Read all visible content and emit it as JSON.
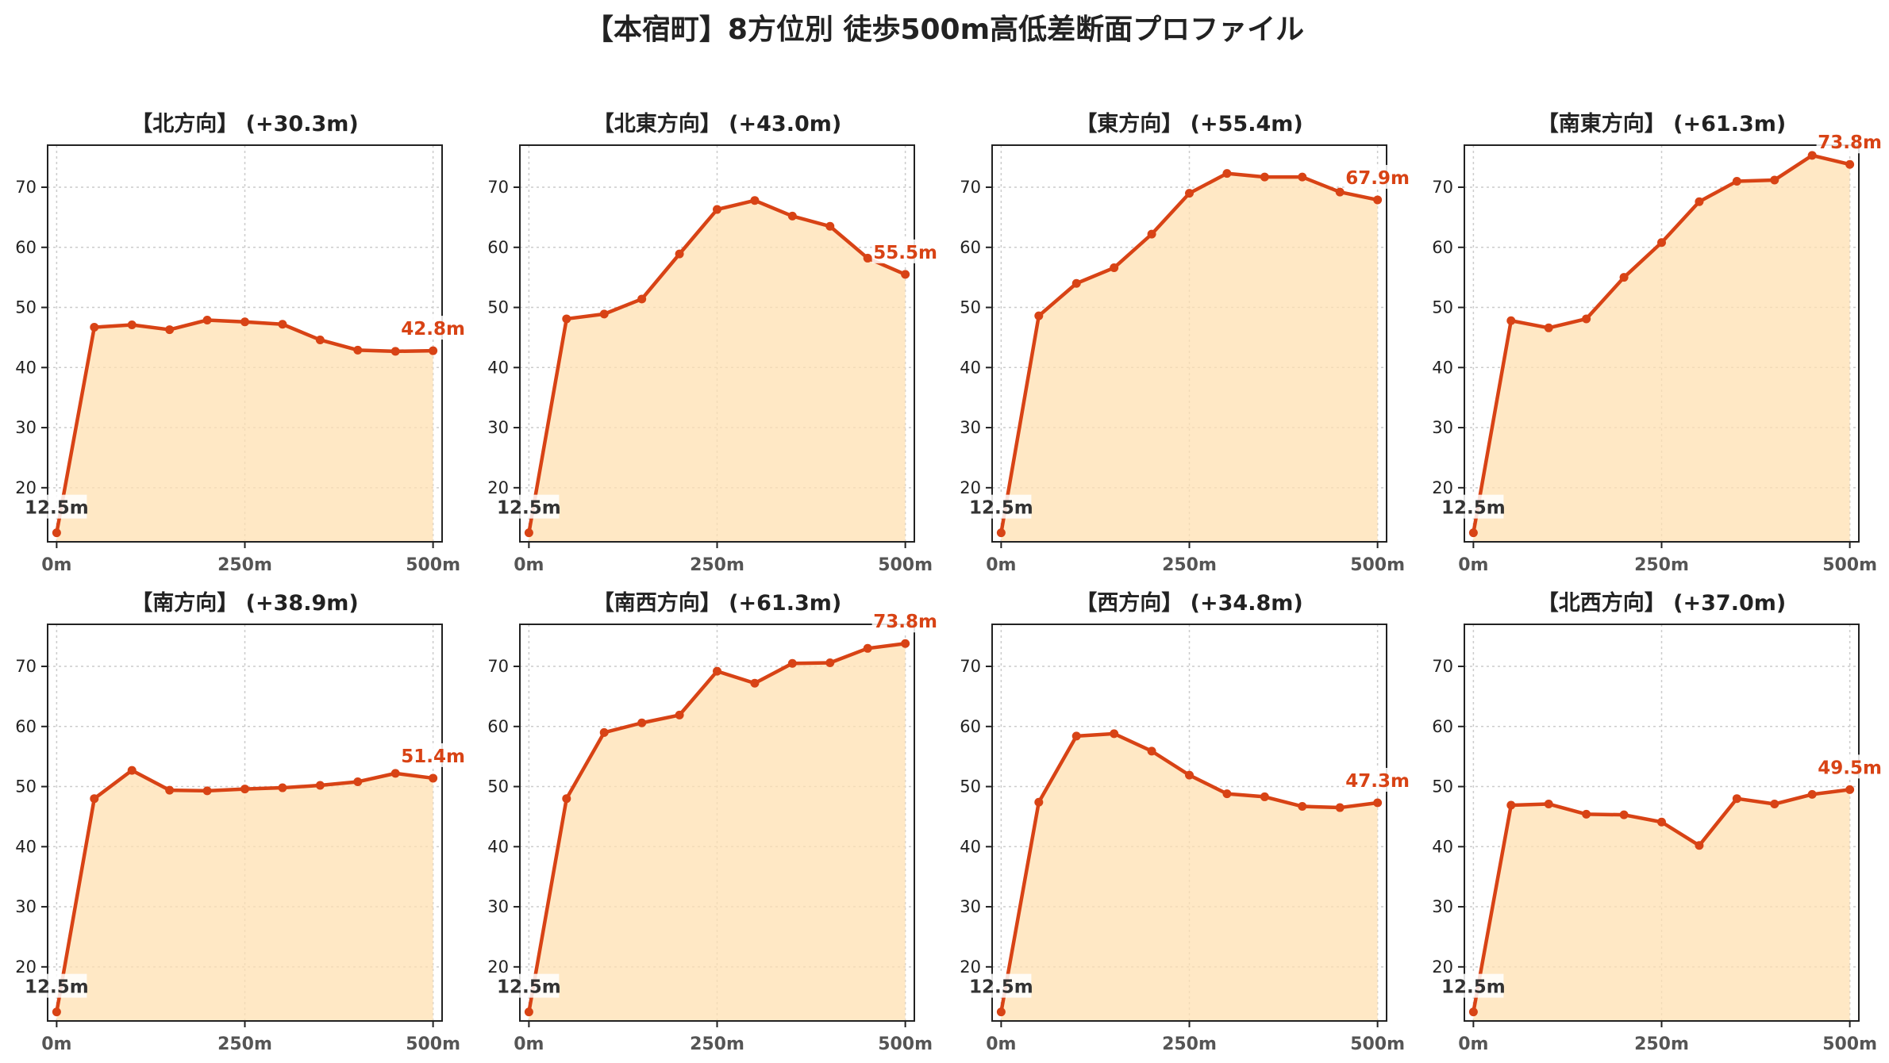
{
  "suptitle": "【本宿町】8方位別 徒歩500m高低差断面プロファイル",
  "colors": {
    "line": "#d84315",
    "fill": "#ffe0b2",
    "start_label": "#333333",
    "grid": "#cccccc"
  },
  "chart_data": [
    {
      "type": "area",
      "title": "【北方向】 (+30.3m)",
      "x": [
        0,
        50,
        100,
        150,
        200,
        250,
        300,
        350,
        400,
        450,
        500
      ],
      "values": [
        12.5,
        46.7,
        47.1,
        46.3,
        47.9,
        47.6,
        47.2,
        44.6,
        42.9,
        42.7,
        42.8
      ],
      "start_label": "12.5m",
      "end_label": "42.8m",
      "xticks": [
        "0m",
        "250m",
        "500m"
      ],
      "yticks": [
        20,
        30,
        40,
        50,
        60,
        70
      ],
      "xlim": [
        -12,
        512
      ],
      "ylim": [
        11,
        77
      ],
      "grid": true
    },
    {
      "type": "area",
      "title": "【北東方向】 (+43.0m)",
      "x": [
        0,
        50,
        100,
        150,
        200,
        250,
        300,
        350,
        400,
        450,
        500
      ],
      "values": [
        12.5,
        48.1,
        48.9,
        51.4,
        58.9,
        66.3,
        67.8,
        65.2,
        63.5,
        58.2,
        55.5
      ],
      "start_label": "12.5m",
      "end_label": "55.5m",
      "xticks": [
        "0m",
        "250m",
        "500m"
      ],
      "yticks": [
        20,
        30,
        40,
        50,
        60,
        70
      ],
      "xlim": [
        -12,
        512
      ],
      "ylim": [
        11,
        77
      ],
      "grid": true
    },
    {
      "type": "area",
      "title": "【東方向】 (+55.4m)",
      "x": [
        0,
        50,
        100,
        150,
        200,
        250,
        300,
        350,
        400,
        450,
        500
      ],
      "values": [
        12.5,
        48.6,
        54.0,
        56.6,
        62.2,
        69.0,
        72.3,
        71.7,
        71.7,
        69.2,
        67.9
      ],
      "start_label": "12.5m",
      "end_label": "67.9m",
      "xticks": [
        "0m",
        "250m",
        "500m"
      ],
      "yticks": [
        20,
        30,
        40,
        50,
        60,
        70
      ],
      "xlim": [
        -12,
        512
      ],
      "ylim": [
        11,
        77
      ],
      "grid": true
    },
    {
      "type": "area",
      "title": "【南東方向】 (+61.3m)",
      "x": [
        0,
        50,
        100,
        150,
        200,
        250,
        300,
        350,
        400,
        450,
        500
      ],
      "values": [
        12.5,
        47.8,
        46.6,
        48.1,
        55.0,
        60.8,
        67.6,
        71.0,
        71.2,
        75.3,
        73.8
      ],
      "start_label": "12.5m",
      "end_label": "73.8m",
      "xticks": [
        "0m",
        "250m",
        "500m"
      ],
      "yticks": [
        20,
        30,
        40,
        50,
        60,
        70
      ],
      "xlim": [
        -12,
        512
      ],
      "ylim": [
        11,
        77
      ],
      "grid": true
    },
    {
      "type": "area",
      "title": "【南方向】 (+38.9m)",
      "x": [
        0,
        50,
        100,
        150,
        200,
        250,
        300,
        350,
        400,
        450,
        500
      ],
      "values": [
        12.5,
        48.0,
        52.7,
        49.4,
        49.3,
        49.6,
        49.8,
        50.2,
        50.8,
        52.2,
        51.4
      ],
      "start_label": "12.5m",
      "end_label": "51.4m",
      "xticks": [
        "0m",
        "250m",
        "500m"
      ],
      "yticks": [
        20,
        30,
        40,
        50,
        60,
        70
      ],
      "xlim": [
        -12,
        512
      ],
      "ylim": [
        11,
        77
      ],
      "grid": true
    },
    {
      "type": "area",
      "title": "【南西方向】 (+61.3m)",
      "x": [
        0,
        50,
        100,
        150,
        200,
        250,
        300,
        350,
        400,
        450,
        500
      ],
      "values": [
        12.5,
        48.0,
        59.0,
        60.6,
        61.9,
        69.2,
        67.2,
        70.5,
        70.6,
        73.0,
        73.8
      ],
      "start_label": "12.5m",
      "end_label": "73.8m",
      "xticks": [
        "0m",
        "250m",
        "500m"
      ],
      "yticks": [
        20,
        30,
        40,
        50,
        60,
        70
      ],
      "xlim": [
        -12,
        512
      ],
      "ylim": [
        11,
        77
      ],
      "grid": true
    },
    {
      "type": "area",
      "title": "【西方向】 (+34.8m)",
      "x": [
        0,
        50,
        100,
        150,
        200,
        250,
        300,
        350,
        400,
        450,
        500
      ],
      "values": [
        12.5,
        47.4,
        58.4,
        58.8,
        55.9,
        51.9,
        48.8,
        48.3,
        46.7,
        46.5,
        47.3
      ],
      "start_label": "12.5m",
      "end_label": "47.3m",
      "xticks": [
        "0m",
        "250m",
        "500m"
      ],
      "yticks": [
        20,
        30,
        40,
        50,
        60,
        70
      ],
      "xlim": [
        -12,
        512
      ],
      "ylim": [
        11,
        77
      ],
      "grid": true
    },
    {
      "type": "area",
      "title": "【北西方向】 (+37.0m)",
      "x": [
        0,
        50,
        100,
        150,
        200,
        250,
        300,
        350,
        400,
        450,
        500
      ],
      "values": [
        12.5,
        46.9,
        47.1,
        45.4,
        45.3,
        44.1,
        40.2,
        48.0,
        47.1,
        48.7,
        49.5
      ],
      "start_label": "12.5m",
      "end_label": "49.5m",
      "xticks": [
        "0m",
        "250m",
        "500m"
      ],
      "yticks": [
        20,
        30,
        40,
        50,
        60,
        70
      ],
      "xlim": [
        -12,
        512
      ],
      "ylim": [
        11,
        77
      ],
      "grid": true
    }
  ]
}
